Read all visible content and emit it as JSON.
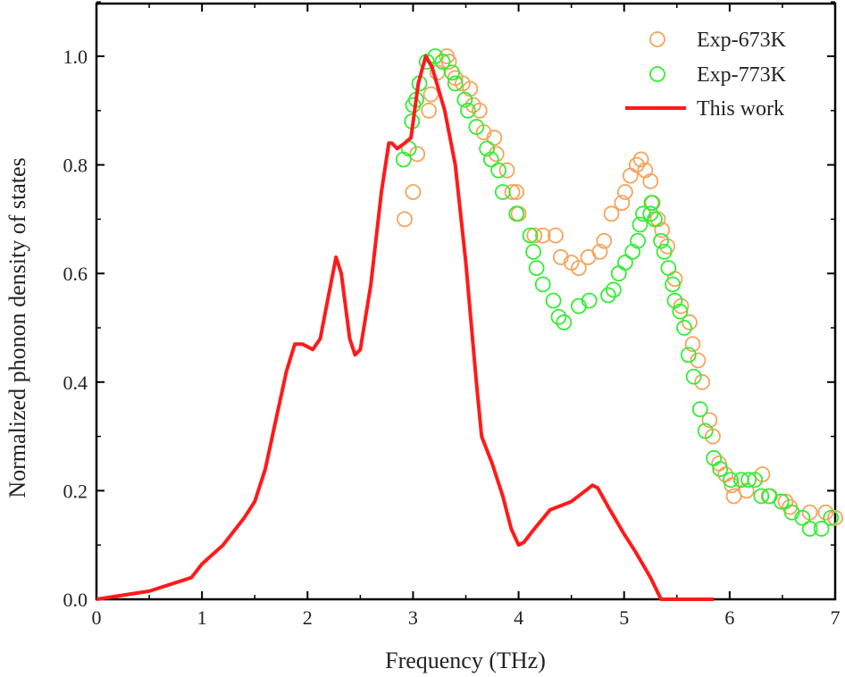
{
  "chart_data": {
    "type": "line",
    "xlabel": "Frequency (THz)",
    "ylabel": "Normalized phonon density of states",
    "xlim": [
      0,
      7
    ],
    "ylim": [
      0,
      1.1
    ],
    "xticks": [
      "0",
      "1",
      "2",
      "3",
      "4",
      "5",
      "6",
      "7"
    ],
    "yticks": [
      "0.0",
      "0.2",
      "0.4",
      "0.6",
      "0.8",
      "1.0"
    ],
    "grid": false,
    "legend_position": "top-right",
    "series": [
      {
        "name": "Exp-673K",
        "kind": "scatter",
        "marker": "open-circle",
        "color": "#f7a35c",
        "x": [
          2.92,
          3.0,
          3.04,
          3.15,
          3.17,
          3.23,
          3.32,
          3.34,
          3.4,
          3.47,
          3.54,
          3.57,
          3.63,
          3.67,
          3.77,
          3.79,
          3.89,
          3.94,
          3.98,
          4.0,
          4.15,
          4.23,
          4.35,
          4.4,
          4.5,
          4.57,
          4.66,
          4.77,
          4.81,
          4.88,
          4.98,
          5.01,
          5.06,
          5.12,
          5.16,
          5.2,
          5.25,
          5.27,
          5.32,
          5.36,
          5.41,
          5.48,
          5.54,
          5.62,
          5.65,
          5.7,
          5.74,
          5.81,
          5.84,
          5.9,
          5.96,
          6.02,
          6.04,
          6.16,
          6.31,
          6.37,
          6.53,
          6.57,
          6.76,
          6.91,
          7.0
        ],
        "y": [
          0.7,
          0.75,
          0.82,
          0.9,
          0.93,
          0.97,
          1.0,
          0.99,
          0.96,
          0.95,
          0.94,
          0.91,
          0.9,
          0.86,
          0.85,
          0.82,
          0.79,
          0.75,
          0.75,
          0.71,
          0.67,
          0.67,
          0.67,
          0.63,
          0.62,
          0.61,
          0.63,
          0.64,
          0.66,
          0.71,
          0.73,
          0.75,
          0.78,
          0.8,
          0.81,
          0.79,
          0.77,
          0.73,
          0.7,
          0.68,
          0.65,
          0.59,
          0.54,
          0.51,
          0.47,
          0.44,
          0.4,
          0.33,
          0.3,
          0.25,
          0.23,
          0.21,
          0.19,
          0.2,
          0.23,
          0.19,
          0.18,
          0.17,
          0.16,
          0.16,
          0.15
        ]
      },
      {
        "name": "Exp-773K",
        "kind": "scatter",
        "marker": "open-circle",
        "color": "#33ee33",
        "x": [
          2.91,
          2.96,
          2.99,
          3.0,
          3.03,
          3.06,
          3.13,
          3.21,
          3.28,
          3.37,
          3.4,
          3.49,
          3.52,
          3.6,
          3.7,
          3.74,
          3.81,
          3.85,
          3.98,
          4.11,
          4.14,
          4.17,
          4.23,
          4.33,
          4.38,
          4.43,
          4.57,
          4.67,
          4.85,
          4.9,
          4.95,
          5.01,
          5.08,
          5.13,
          5.15,
          5.18,
          5.25,
          5.26,
          5.29,
          5.35,
          5.38,
          5.42,
          5.46,
          5.48,
          5.53,
          5.57,
          5.61,
          5.66,
          5.72,
          5.77,
          5.85,
          5.91,
          6.01,
          6.11,
          6.18,
          6.24,
          6.3,
          6.38,
          6.49,
          6.59,
          6.69,
          6.76,
          6.87,
          6.96
        ],
        "y": [
          0.81,
          0.83,
          0.88,
          0.91,
          0.92,
          0.95,
          0.99,
          1.0,
          0.99,
          0.97,
          0.95,
          0.92,
          0.9,
          0.87,
          0.83,
          0.81,
          0.79,
          0.75,
          0.71,
          0.67,
          0.64,
          0.61,
          0.58,
          0.55,
          0.52,
          0.51,
          0.54,
          0.55,
          0.56,
          0.57,
          0.6,
          0.62,
          0.64,
          0.66,
          0.69,
          0.71,
          0.71,
          0.73,
          0.7,
          0.66,
          0.64,
          0.61,
          0.58,
          0.55,
          0.53,
          0.5,
          0.45,
          0.41,
          0.35,
          0.31,
          0.26,
          0.24,
          0.22,
          0.22,
          0.22,
          0.22,
          0.19,
          0.19,
          0.18,
          0.16,
          0.15,
          0.13,
          0.13,
          0.15
        ]
      },
      {
        "name": "This work",
        "kind": "line",
        "color": "#ff1a1a",
        "x": [
          0,
          0.5,
          0.9,
          1.0,
          1.2,
          1.4,
          1.5,
          1.6,
          1.7,
          1.8,
          1.88,
          1.95,
          2.05,
          2.12,
          2.2,
          2.27,
          2.32,
          2.4,
          2.45,
          2.5,
          2.6,
          2.7,
          2.77,
          2.8,
          2.85,
          2.92,
          2.98,
          3.05,
          3.12,
          3.18,
          3.3,
          3.4,
          3.5,
          3.6,
          3.65,
          3.75,
          3.85,
          3.93,
          4.0,
          4.05,
          4.15,
          4.3,
          4.5,
          4.6,
          4.7,
          4.75,
          4.85,
          5.0,
          5.1,
          5.25,
          5.35,
          5.85
        ],
        "y": [
          0,
          0.015,
          0.04,
          0.065,
          0.1,
          0.15,
          0.18,
          0.24,
          0.33,
          0.42,
          0.47,
          0.47,
          0.46,
          0.48,
          0.56,
          0.63,
          0.6,
          0.48,
          0.45,
          0.46,
          0.58,
          0.75,
          0.84,
          0.84,
          0.83,
          0.84,
          0.85,
          0.95,
          1.0,
          0.98,
          0.9,
          0.8,
          0.62,
          0.4,
          0.3,
          0.25,
          0.19,
          0.13,
          0.1,
          0.105,
          0.13,
          0.165,
          0.18,
          0.195,
          0.21,
          0.205,
          0.17,
          0.12,
          0.09,
          0.04,
          0.0,
          0.0
        ]
      }
    ]
  }
}
